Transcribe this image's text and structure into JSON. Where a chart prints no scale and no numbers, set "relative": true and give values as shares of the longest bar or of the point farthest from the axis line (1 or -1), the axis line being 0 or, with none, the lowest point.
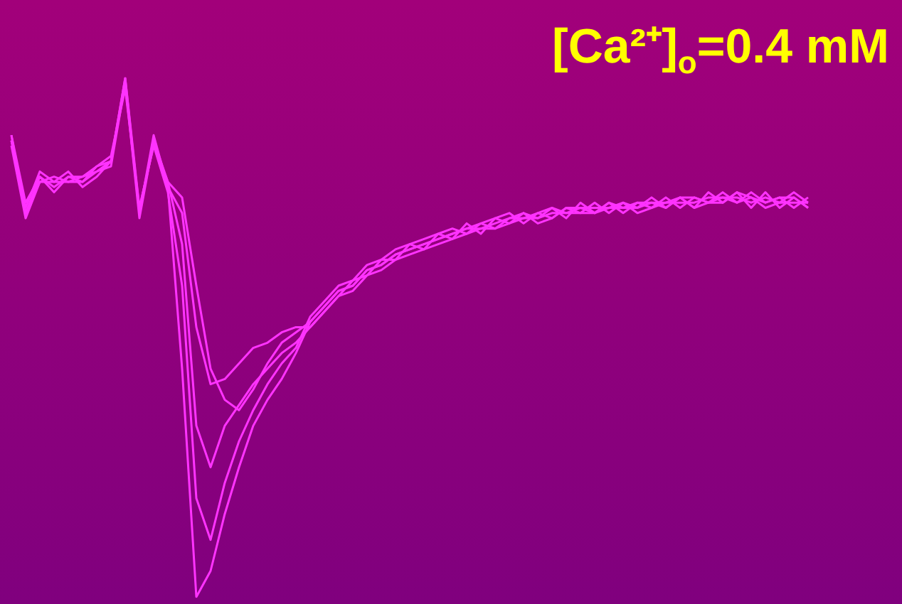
{
  "chart_data": {
    "type": "line",
    "title": "[Ca²⁺]$_{o}$=0.4 mM",
    "relative": true,
    "categories": [
      null,
      null,
      null,
      null,
      null,
      null,
      null,
      null,
      null,
      null,
      null,
      null,
      null,
      null,
      null,
      null,
      null,
      null,
      null,
      null,
      null,
      null,
      null,
      null,
      null,
      null,
      null,
      null,
      null,
      null,
      null,
      null,
      null,
      null,
      null,
      null,
      null,
      null,
      null,
      null,
      null,
      null,
      null,
      null,
      null,
      null,
      null,
      null,
      null,
      null,
      null,
      null,
      null,
      null,
      null,
      null,
      null
    ],
    "series": [
      {
        "color": "#ff33ff",
        "values": [
          0.89,
          0.74,
          0.81,
          0.79,
          0.81,
          0.8,
          0.82,
          0.84,
          1,
          0.74,
          0.88,
          0.79,
          0.44,
          0,
          0.05,
          0.16,
          0.25,
          0.33,
          0.38,
          0.42,
          0.47,
          0.53,
          0.56,
          0.59,
          0.6,
          0.63,
          0.64,
          0.66,
          0.67,
          0.68,
          0.69,
          0.7,
          0.71,
          0.71,
          0.72,
          0.73,
          0.73,
          0.73,
          0.74,
          0.74,
          0.75,
          0.75,
          0.75,
          0.75,
          0.75,
          0.76,
          0.76,
          0.76,
          0.76,
          0.77,
          0.77,
          0.77,
          0.76,
          0.77,
          0.76,
          0.76,
          0.76
        ]
      },
      {
        "color": "#ff33ff",
        "values": [
          0.88,
          0.75,
          0.82,
          0.8,
          0.8,
          0.81,
          0.83,
          0.85,
          0.98,
          0.75,
          0.87,
          0.78,
          0.6,
          0.19,
          0.11,
          0.22,
          0.3,
          0.36,
          0.41,
          0.45,
          0.48,
          0.54,
          0.57,
          0.6,
          0.61,
          0.64,
          0.65,
          0.67,
          0.68,
          0.69,
          0.7,
          0.71,
          0.7,
          0.72,
          0.73,
          0.74,
          0.72,
          0.74,
          0.75,
          0.73,
          0.76,
          0.74,
          0.76,
          0.74,
          0.76,
          0.75,
          0.77,
          0.75,
          0.77,
          0.76,
          0.78,
          0.76,
          0.77,
          0.76,
          0.77,
          0.75,
          0.77
        ]
      },
      {
        "color": "#ff33ff",
        "values": [
          0.87,
          0.73,
          0.8,
          0.8,
          0.82,
          0.79,
          0.81,
          0.84,
          0.99,
          0.73,
          0.88,
          0.8,
          0.68,
          0.33,
          0.25,
          0.33,
          0.37,
          0.41,
          0.44,
          0.47,
          0.49,
          0.52,
          0.55,
          0.58,
          0.61,
          0.62,
          0.65,
          0.65,
          0.68,
          0.67,
          0.7,
          0.69,
          0.72,
          0.7,
          0.73,
          0.72,
          0.74,
          0.73,
          0.75,
          0.74,
          0.74,
          0.76,
          0.74,
          0.76,
          0.75,
          0.77,
          0.75,
          0.77,
          0.75,
          0.78,
          0.76,
          0.78,
          0.75,
          0.78,
          0.75,
          0.77,
          0.75
        ]
      },
      {
        "color": "#ff33ff",
        "values": [
          0.89,
          0.76,
          0.81,
          0.78,
          0.81,
          0.81,
          0.82,
          0.83,
          0.99,
          0.74,
          0.89,
          0.79,
          0.74,
          0.52,
          0.41,
          0.42,
          0.45,
          0.48,
          0.49,
          0.51,
          0.52,
          0.52,
          0.55,
          0.58,
          0.59,
          0.62,
          0.63,
          0.65,
          0.66,
          0.67,
          0.68,
          0.69,
          0.7,
          0.71,
          0.71,
          0.72,
          0.73,
          0.74,
          0.73,
          0.75,
          0.74,
          0.74,
          0.75,
          0.76,
          0.74,
          0.75,
          0.76,
          0.77,
          0.75,
          0.76,
          0.77,
          0.76,
          0.78,
          0.76,
          0.77,
          0.77,
          0.75
        ]
      },
      {
        "color": "#ff33ff",
        "values": [
          0.88,
          0.74,
          0.8,
          0.81,
          0.8,
          0.8,
          0.83,
          0.84,
          1,
          0.75,
          0.87,
          0.8,
          0.77,
          0.6,
          0.44,
          0.38,
          0.36,
          0.4,
          0.45,
          0.49,
          0.51,
          0.53,
          0.56,
          0.59,
          0.6,
          0.63,
          0.64,
          0.66,
          0.67,
          0.68,
          0.69,
          0.7,
          0.71,
          0.72,
          0.71,
          0.73,
          0.74,
          0.72,
          0.73,
          0.75,
          0.75,
          0.74,
          0.76,
          0.75,
          0.76,
          0.76,
          0.75,
          0.77,
          0.77,
          0.76,
          0.76,
          0.78,
          0.77,
          0.75,
          0.76,
          0.78,
          0.76
        ]
      }
    ]
  }
}
